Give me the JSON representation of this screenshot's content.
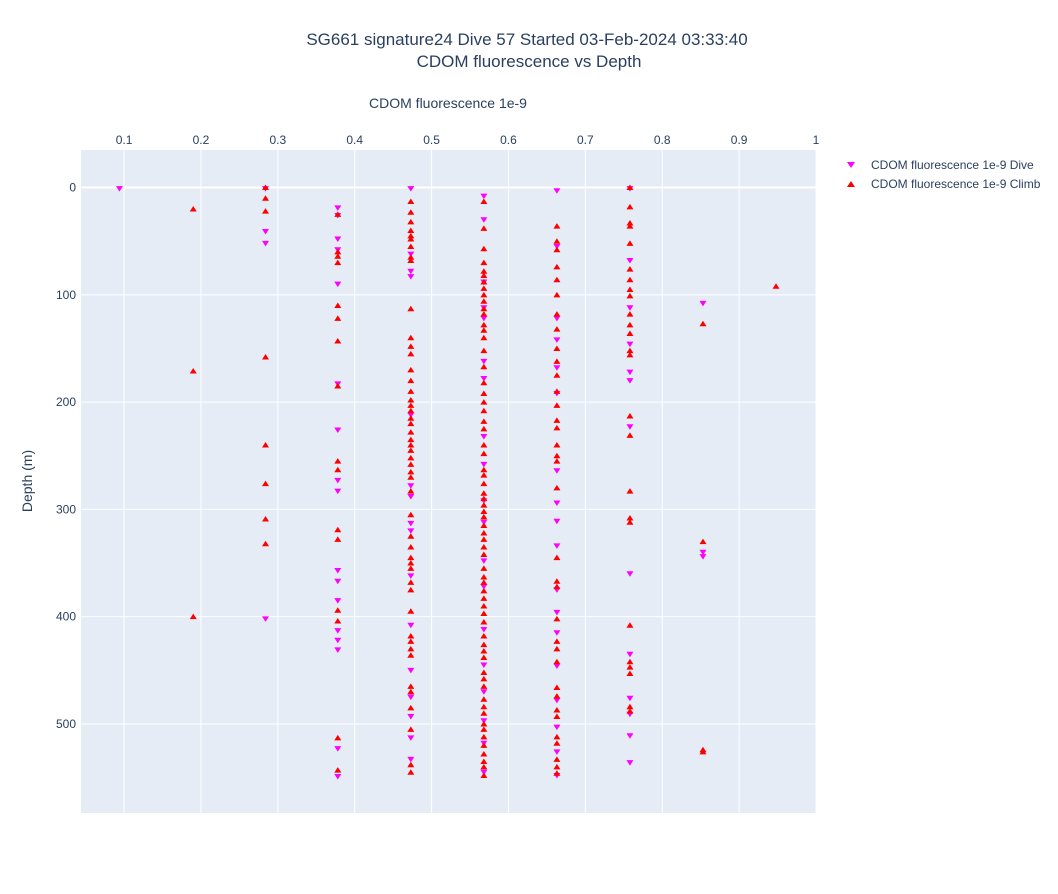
{
  "chart_data": {
    "type": "scatter",
    "title": "SG661 signature24 Dive 57 Started 03-Feb-2024 03:33:40",
    "subtitle": "CDOM fluorescence vs Depth",
    "xlabel": "CDOM fluorescence 1e-9",
    "ylabel": "Depth (m)",
    "xlim": [
      0.044,
      1.0
    ],
    "ylim": [
      583,
      -35
    ],
    "x_axis_position": "top",
    "y_reversed": true,
    "grid": true,
    "legend_position": "top-right",
    "x_ticks": [
      {
        "value": 0.1,
        "label": "0.1"
      },
      {
        "value": 0.2,
        "label": "0.2"
      },
      {
        "value": 0.3,
        "label": "0.3"
      },
      {
        "value": 0.4,
        "label": "0.4"
      },
      {
        "value": 0.5,
        "label": "0.5"
      },
      {
        "value": 0.6,
        "label": "0.6"
      },
      {
        "value": 0.7,
        "label": "0.7"
      },
      {
        "value": 0.8,
        "label": "0.8"
      },
      {
        "value": 0.9,
        "label": "0.9"
      },
      {
        "value": 1.0,
        "label": "1"
      }
    ],
    "y_ticks": [
      {
        "value": 0,
        "label": "0"
      },
      {
        "value": 100,
        "label": "100"
      },
      {
        "value": 200,
        "label": "200"
      },
      {
        "value": 300,
        "label": "300"
      },
      {
        "value": 400,
        "label": "400"
      },
      {
        "value": 500,
        "label": "500"
      }
    ],
    "series": [
      {
        "name": "CDOM fluorescence 1e-9 Dive",
        "color": "#ff00ff",
        "marker": "triangle-down",
        "points": [
          [
            0.094,
            1
          ],
          [
            0.284,
            1
          ],
          [
            0.284,
            41
          ],
          [
            0.284,
            52
          ],
          [
            0.284,
            402
          ],
          [
            0.378,
            19
          ],
          [
            0.378,
            26
          ],
          [
            0.378,
            48
          ],
          [
            0.378,
            58
          ],
          [
            0.378,
            90
          ],
          [
            0.378,
            183
          ],
          [
            0.378,
            226
          ],
          [
            0.378,
            273
          ],
          [
            0.378,
            283
          ],
          [
            0.378,
            357
          ],
          [
            0.378,
            367
          ],
          [
            0.378,
            385
          ],
          [
            0.378,
            413
          ],
          [
            0.378,
            422
          ],
          [
            0.378,
            431
          ],
          [
            0.378,
            523
          ],
          [
            0.378,
            549
          ],
          [
            0.473,
            1
          ],
          [
            0.473,
            62
          ],
          [
            0.473,
            78
          ],
          [
            0.473,
            83
          ],
          [
            0.473,
            212
          ],
          [
            0.473,
            278
          ],
          [
            0.473,
            288
          ],
          [
            0.473,
            313
          ],
          [
            0.473,
            320
          ],
          [
            0.473,
            362
          ],
          [
            0.473,
            408
          ],
          [
            0.473,
            450
          ],
          [
            0.473,
            475
          ],
          [
            0.473,
            493
          ],
          [
            0.473,
            513
          ],
          [
            0.473,
            533
          ],
          [
            0.568,
            8
          ],
          [
            0.568,
            30
          ],
          [
            0.568,
            88
          ],
          [
            0.568,
            112
          ],
          [
            0.568,
            122
          ],
          [
            0.568,
            162
          ],
          [
            0.568,
            178
          ],
          [
            0.568,
            232
          ],
          [
            0.568,
            258
          ],
          [
            0.568,
            292
          ],
          [
            0.568,
            312
          ],
          [
            0.568,
            348
          ],
          [
            0.568,
            372
          ],
          [
            0.568,
            412
          ],
          [
            0.568,
            445
          ],
          [
            0.568,
            470
          ],
          [
            0.568,
            497
          ],
          [
            0.568,
            518
          ],
          [
            0.568,
            545
          ],
          [
            0.663,
            3
          ],
          [
            0.663,
            55
          ],
          [
            0.663,
            122
          ],
          [
            0.663,
            142
          ],
          [
            0.663,
            168
          ],
          [
            0.663,
            192
          ],
          [
            0.663,
            264
          ],
          [
            0.663,
            294
          ],
          [
            0.663,
            311
          ],
          [
            0.663,
            334
          ],
          [
            0.663,
            375
          ],
          [
            0.663,
            396
          ],
          [
            0.663,
            415
          ],
          [
            0.663,
            446
          ],
          [
            0.663,
            478
          ],
          [
            0.663,
            503
          ],
          [
            0.663,
            526
          ],
          [
            0.663,
            548
          ],
          [
            0.758,
            1
          ],
          [
            0.758,
            68
          ],
          [
            0.758,
            112
          ],
          [
            0.758,
            146
          ],
          [
            0.758,
            172
          ],
          [
            0.758,
            180
          ],
          [
            0.758,
            223
          ],
          [
            0.758,
            360
          ],
          [
            0.758,
            435
          ],
          [
            0.758,
            476
          ],
          [
            0.758,
            491
          ],
          [
            0.758,
            511
          ],
          [
            0.758,
            536
          ],
          [
            0.853,
            108
          ],
          [
            0.853,
            340
          ],
          [
            0.853,
            344
          ]
        ]
      },
      {
        "name": "CDOM fluorescence 1e-9 Climb",
        "color": "#ff0000",
        "marker": "triangle-up",
        "points": [
          [
            0.19,
            20
          ],
          [
            0.19,
            171
          ],
          [
            0.19,
            400
          ],
          [
            0.284,
            0
          ],
          [
            0.284,
            10
          ],
          [
            0.284,
            22
          ],
          [
            0.284,
            158
          ],
          [
            0.284,
            240
          ],
          [
            0.284,
            276
          ],
          [
            0.284,
            309
          ],
          [
            0.284,
            332
          ],
          [
            0.378,
            25
          ],
          [
            0.378,
            60
          ],
          [
            0.378,
            64
          ],
          [
            0.378,
            70
          ],
          [
            0.378,
            110
          ],
          [
            0.378,
            122
          ],
          [
            0.378,
            143
          ],
          [
            0.378,
            185
          ],
          [
            0.378,
            255
          ],
          [
            0.378,
            263
          ],
          [
            0.378,
            319
          ],
          [
            0.378,
            328
          ],
          [
            0.378,
            394
          ],
          [
            0.378,
            404
          ],
          [
            0.378,
            513
          ],
          [
            0.378,
            543
          ],
          [
            0.473,
            13
          ],
          [
            0.473,
            23
          ],
          [
            0.473,
            32
          ],
          [
            0.473,
            40
          ],
          [
            0.473,
            45
          ],
          [
            0.473,
            48
          ],
          [
            0.473,
            55
          ],
          [
            0.473,
            65
          ],
          [
            0.473,
            68
          ],
          [
            0.473,
            113
          ],
          [
            0.473,
            140
          ],
          [
            0.473,
            148
          ],
          [
            0.473,
            155
          ],
          [
            0.473,
            170
          ],
          [
            0.473,
            180
          ],
          [
            0.473,
            190
          ],
          [
            0.473,
            198
          ],
          [
            0.473,
            203
          ],
          [
            0.473,
            208
          ],
          [
            0.473,
            215
          ],
          [
            0.473,
            220
          ],
          [
            0.473,
            228
          ],
          [
            0.473,
            235
          ],
          [
            0.473,
            240
          ],
          [
            0.473,
            245
          ],
          [
            0.473,
            252
          ],
          [
            0.473,
            258
          ],
          [
            0.473,
            265
          ],
          [
            0.473,
            270
          ],
          [
            0.473,
            283
          ],
          [
            0.473,
            305
          ],
          [
            0.473,
            325
          ],
          [
            0.473,
            335
          ],
          [
            0.473,
            345
          ],
          [
            0.473,
            350
          ],
          [
            0.473,
            355
          ],
          [
            0.473,
            368
          ],
          [
            0.473,
            375
          ],
          [
            0.473,
            395
          ],
          [
            0.473,
            418
          ],
          [
            0.473,
            423
          ],
          [
            0.473,
            430
          ],
          [
            0.473,
            436
          ],
          [
            0.473,
            465
          ],
          [
            0.473,
            470
          ],
          [
            0.473,
            485
          ],
          [
            0.473,
            505
          ],
          [
            0.473,
            538
          ],
          [
            0.473,
            545
          ],
          [
            0.568,
            13
          ],
          [
            0.568,
            38
          ],
          [
            0.568,
            57
          ],
          [
            0.568,
            70
          ],
          [
            0.568,
            78
          ],
          [
            0.568,
            82
          ],
          [
            0.568,
            88
          ],
          [
            0.568,
            94
          ],
          [
            0.568,
            100
          ],
          [
            0.568,
            106
          ],
          [
            0.568,
            113
          ],
          [
            0.568,
            118
          ],
          [
            0.568,
            128
          ],
          [
            0.568,
            133
          ],
          [
            0.568,
            140
          ],
          [
            0.568,
            152
          ],
          [
            0.568,
            167
          ],
          [
            0.568,
            182
          ],
          [
            0.568,
            192
          ],
          [
            0.568,
            200
          ],
          [
            0.568,
            208
          ],
          [
            0.568,
            218
          ],
          [
            0.568,
            225
          ],
          [
            0.568,
            240
          ],
          [
            0.568,
            248
          ],
          [
            0.568,
            263
          ],
          [
            0.568,
            268
          ],
          [
            0.568,
            276
          ],
          [
            0.568,
            285
          ],
          [
            0.568,
            290
          ],
          [
            0.568,
            296
          ],
          [
            0.568,
            302
          ],
          [
            0.568,
            307
          ],
          [
            0.568,
            315
          ],
          [
            0.568,
            322
          ],
          [
            0.568,
            328
          ],
          [
            0.568,
            335
          ],
          [
            0.568,
            342
          ],
          [
            0.568,
            355
          ],
          [
            0.568,
            363
          ],
          [
            0.568,
            368
          ],
          [
            0.568,
            376
          ],
          [
            0.568,
            383
          ],
          [
            0.568,
            390
          ],
          [
            0.568,
            397
          ],
          [
            0.568,
            405
          ],
          [
            0.568,
            418
          ],
          [
            0.568,
            426
          ],
          [
            0.568,
            432
          ],
          [
            0.568,
            438
          ],
          [
            0.568,
            452
          ],
          [
            0.568,
            458
          ],
          [
            0.568,
            465
          ],
          [
            0.568,
            477
          ],
          [
            0.568,
            484
          ],
          [
            0.568,
            490
          ],
          [
            0.568,
            500
          ],
          [
            0.568,
            505
          ],
          [
            0.568,
            512
          ],
          [
            0.568,
            520
          ],
          [
            0.568,
            528
          ],
          [
            0.568,
            535
          ],
          [
            0.568,
            540
          ],
          [
            0.568,
            548
          ],
          [
            0.663,
            36
          ],
          [
            0.663,
            50
          ],
          [
            0.663,
            58
          ],
          [
            0.663,
            74
          ],
          [
            0.663,
            86
          ],
          [
            0.663,
            100
          ],
          [
            0.663,
            118
          ],
          [
            0.663,
            132
          ],
          [
            0.663,
            150
          ],
          [
            0.663,
            162
          ],
          [
            0.663,
            175
          ],
          [
            0.663,
            190
          ],
          [
            0.663,
            203
          ],
          [
            0.663,
            217
          ],
          [
            0.663,
            224
          ],
          [
            0.663,
            240
          ],
          [
            0.663,
            250
          ],
          [
            0.663,
            255
          ],
          [
            0.663,
            280
          ],
          [
            0.663,
            345
          ],
          [
            0.663,
            367
          ],
          [
            0.663,
            372
          ],
          [
            0.663,
            402
          ],
          [
            0.663,
            423
          ],
          [
            0.663,
            430
          ],
          [
            0.663,
            442
          ],
          [
            0.663,
            466
          ],
          [
            0.663,
            474
          ],
          [
            0.663,
            487
          ],
          [
            0.663,
            493
          ],
          [
            0.663,
            512
          ],
          [
            0.663,
            518
          ],
          [
            0.663,
            533
          ],
          [
            0.663,
            540
          ],
          [
            0.663,
            546
          ],
          [
            0.758,
            0
          ],
          [
            0.758,
            18
          ],
          [
            0.758,
            33
          ],
          [
            0.758,
            36
          ],
          [
            0.758,
            52
          ],
          [
            0.758,
            76
          ],
          [
            0.758,
            86
          ],
          [
            0.758,
            95
          ],
          [
            0.758,
            101
          ],
          [
            0.758,
            118
          ],
          [
            0.758,
            128
          ],
          [
            0.758,
            136
          ],
          [
            0.758,
            152
          ],
          [
            0.758,
            156
          ],
          [
            0.758,
            213
          ],
          [
            0.758,
            231
          ],
          [
            0.758,
            283
          ],
          [
            0.758,
            308
          ],
          [
            0.758,
            312
          ],
          [
            0.758,
            408
          ],
          [
            0.758,
            442
          ],
          [
            0.758,
            447
          ],
          [
            0.758,
            453
          ],
          [
            0.758,
            484
          ],
          [
            0.758,
            488
          ],
          [
            0.853,
            127
          ],
          [
            0.853,
            330
          ],
          [
            0.853,
            524
          ],
          [
            0.853,
            526
          ],
          [
            0.948,
            92
          ]
        ]
      }
    ]
  }
}
